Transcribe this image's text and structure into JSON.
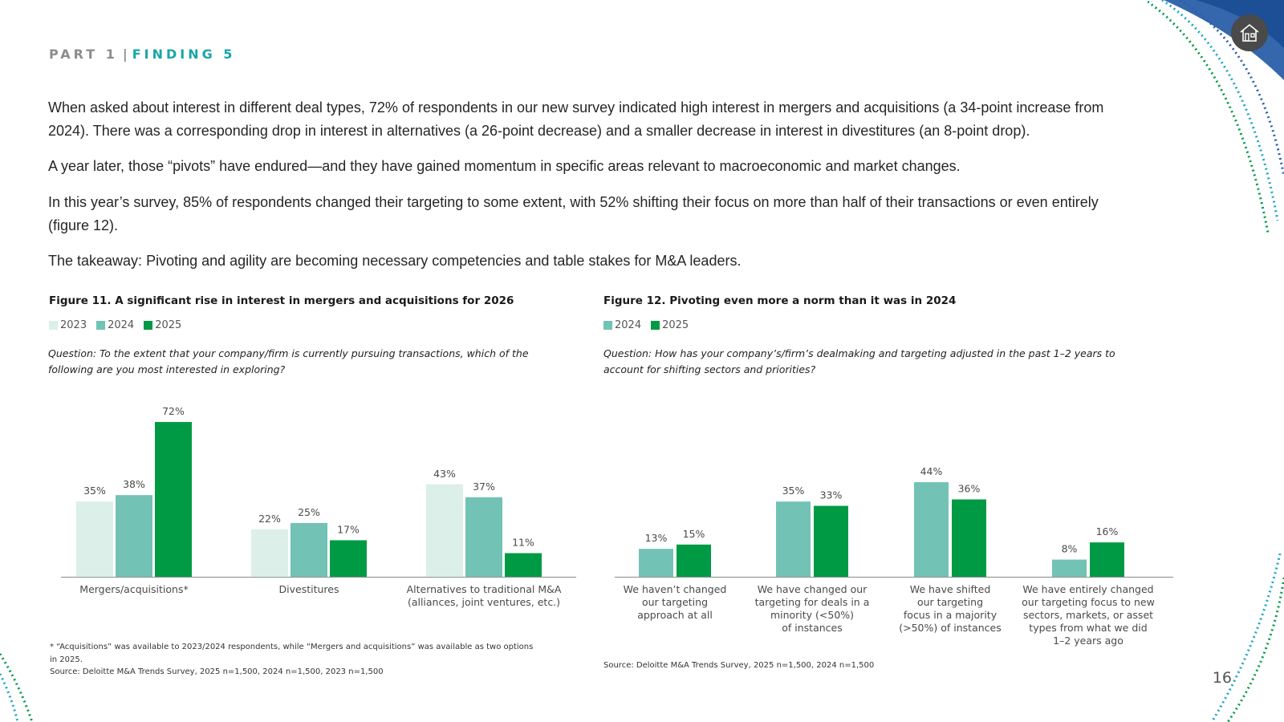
{
  "header": {
    "part": "PART 1",
    "separator": "|",
    "finding": "FINDING 5"
  },
  "paragraphs": [
    "When asked about interest in different deal types, 72% of respondents in our new survey indicated high interest in mergers and acquisitions (a 34-point increase from 2024). There was a corresponding drop in interest in alternatives (a 26-point decrease) and a smaller decrease in interest in divestitures (an 8-point drop).",
    "A year later, those “pivots” have endured—and they have gained momentum in specific areas relevant to macroeconomic and market changes.",
    "In this year’s survey, 85% of respondents changed their targeting to some extent, with 52% shifting their focus on more than half of their transactions or even entirely (figure 12).",
    "The takeaway: Pivoting and agility are becoming necessary competencies and table stakes for M&A leaders."
  ],
  "colors": {
    "y2023": "#dcefe8",
    "y2024": "#72c2b5",
    "y2025": "#009a44",
    "header_accent": "#1aa5a8"
  },
  "page_number": "16",
  "home_icon": "home-icon",
  "chart_data": [
    {
      "type": "bar",
      "title": "Figure 11. A significant rise in interest in mergers and acquisitions for 2026",
      "question": "Question: To the extent that your company/firm is currently pursuing transactions, which of the following are you most interested in exploring?",
      "categories": [
        "Mergers/acquisitions*",
        "Divestitures",
        "Alternatives to traditional M&A\n(alliances, joint ventures, etc.)"
      ],
      "series": [
        {
          "name": "2023",
          "values": [
            35,
            22,
            43
          ],
          "labels": [
            "35%",
            "22%",
            "43%"
          ],
          "color": "#dcefe8"
        },
        {
          "name": "2024",
          "values": [
            38,
            25,
            37
          ],
          "labels": [
            "38%",
            "25%",
            "37%"
          ],
          "color": "#72c2b5"
        },
        {
          "name": "2025",
          "values": [
            72,
            17,
            11
          ],
          "labels": [
            "72%",
            "17%",
            "11%"
          ],
          "color": "#009a44"
        }
      ],
      "ylim": [
        0,
        75
      ],
      "legend_position": "top-left",
      "footnote": "* “Acquisitions” was available to 2023/2024 respondents, while “Mergers and acquisitions” was available as two options in 2025.",
      "source": "Source: Deloitte M&A Trends Survey, 2025 n=1,500, 2024 n=1,500, 2023 n=1,500"
    },
    {
      "type": "bar",
      "title": "Figure 12. Pivoting even more a norm than it was in 2024",
      "question": "Question: How has your company’s/firm’s dealmaking and targeting adjusted in the past 1–2 years to account for shifting sectors and priorities?",
      "categories": [
        "We haven’t changed\nour targeting\napproach at all",
        "We have changed our\ntargeting for deals in a\nminority (<50%)\nof instances",
        "We have shifted\nour targeting\nfocus in a majority\n(>50%) of instances",
        "We have entirely changed\nour targeting focus to new\nsectors, markets, or asset\ntypes from what we did\n1–2 years ago"
      ],
      "series": [
        {
          "name": "2024",
          "values": [
            13,
            35,
            44,
            8
          ],
          "labels": [
            "13%",
            "35%",
            "44%",
            "8%"
          ],
          "color": "#72c2b5"
        },
        {
          "name": "2025",
          "values": [
            15,
            33,
            36,
            16
          ],
          "labels": [
            "15%",
            "33%",
            "36%",
            "16%"
          ],
          "color": "#009a44"
        }
      ],
      "ylim": [
        0,
        75
      ],
      "legend_position": "top-left",
      "source": "Source: Deloitte M&A Trends Survey, 2025 n=1,500, 2024 n=1,500"
    }
  ]
}
